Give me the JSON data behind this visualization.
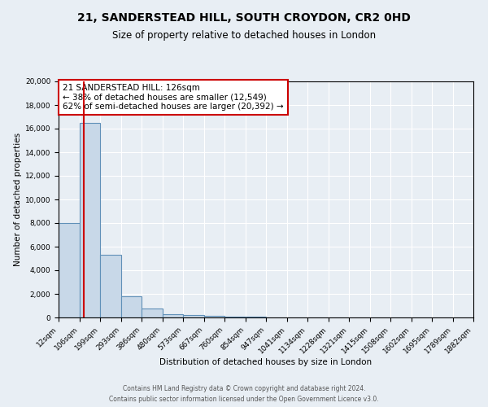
{
  "title": "21, SANDERSTEAD HILL, SOUTH CROYDON, CR2 0HD",
  "subtitle": "Size of property relative to detached houses in London",
  "xlabel": "Distribution of detached houses by size in London",
  "ylabel": "Number of detached properties",
  "bin_edges": [
    12,
    106,
    199,
    293,
    386,
    480,
    573,
    667,
    760,
    854,
    947,
    1041,
    1134,
    1228,
    1321,
    1415,
    1508,
    1602,
    1695,
    1789,
    1882
  ],
  "bin_labels": [
    "12sqm",
    "106sqm",
    "199sqm",
    "293sqm",
    "386sqm",
    "480sqm",
    "573sqm",
    "667sqm",
    "760sqm",
    "854sqm",
    "947sqm",
    "1041sqm",
    "1134sqm",
    "1228sqm",
    "1321sqm",
    "1415sqm",
    "1508sqm",
    "1602sqm",
    "1695sqm",
    "1789sqm",
    "1882sqm"
  ],
  "bar_heights": [
    8000,
    16500,
    5300,
    1800,
    750,
    270,
    200,
    120,
    80,
    50,
    0,
    0,
    0,
    0,
    0,
    0,
    0,
    0,
    0,
    0
  ],
  "bar_color": "#c8d8e8",
  "bar_edge_color": "#6090b8",
  "bar_edge_width": 0.8,
  "red_line_x": 126,
  "red_line_color": "#cc0000",
  "ylim": [
    0,
    20000
  ],
  "yticks": [
    0,
    2000,
    4000,
    6000,
    8000,
    10000,
    12000,
    14000,
    16000,
    18000,
    20000
  ],
  "annotation_title": "21 SANDERSTEAD HILL: 126sqm",
  "annotation_line1": "← 38% of detached houses are smaller (12,549)",
  "annotation_line2": "62% of semi-detached houses are larger (20,392) →",
  "annotation_box_color": "#cc0000",
  "annotation_fill_color": "#ffffff",
  "footer1": "Contains HM Land Registry data © Crown copyright and database right 2024.",
  "footer2": "Contains public sector information licensed under the Open Government Licence v3.0.",
  "background_color": "#e8eef4",
  "plot_bg_color": "#e8eef4",
  "grid_color": "#ffffff",
  "title_fontsize": 10,
  "subtitle_fontsize": 8.5,
  "axis_label_fontsize": 7.5,
  "tick_fontsize": 6.5,
  "annotation_fontsize": 7.5,
  "footer_fontsize": 5.5
}
